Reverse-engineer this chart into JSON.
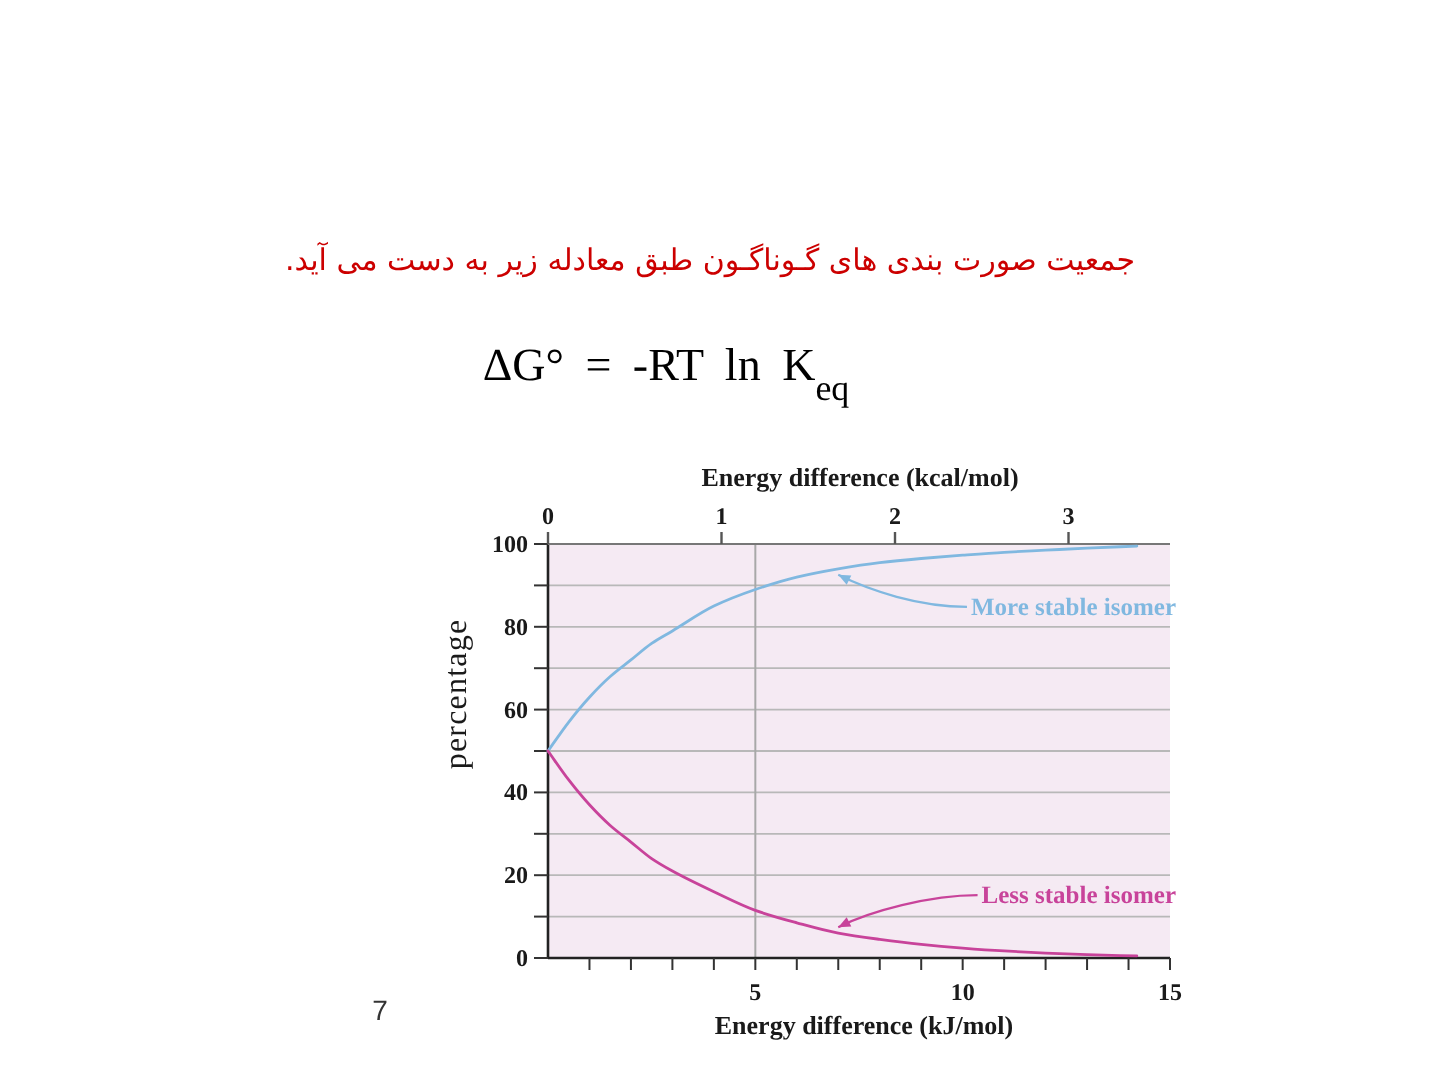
{
  "chart_data": {
    "type": "line",
    "title": "جمعیت صورت بندی های گـوناگـون طبق معادله زیر به دست می آید.",
    "subtitle": "ΔG° = -RT ln K$_{eq}$",
    "xlabel": "Energy difference (kJ/mol)",
    "x2label": "Energy difference (kcal/mol)",
    "ylabel": "percentage",
    "annotations": [
      "7"
    ],
    "x": [
      0,
      0.5,
      1,
      1.5,
      2,
      2.5,
      3,
      4,
      5,
      6,
      7,
      8,
      9,
      10,
      11,
      12,
      13,
      14.2
    ],
    "series": [
      {
        "name": "More stable isomer",
        "color": "#80b8e0",
        "values": [
          50,
          57,
          63,
          68,
          72,
          76,
          79,
          85,
          89,
          92,
          94,
          95.5,
          96.5,
          97.3,
          98,
          98.5,
          99,
          99.5
        ]
      },
      {
        "name": "Less stable isomer",
        "color": "#c8439a",
        "values": [
          50,
          43,
          37,
          32,
          28,
          24,
          21,
          16,
          11.5,
          8.5,
          6,
          4.5,
          3.3,
          2.4,
          1.7,
          1.2,
          0.8,
          0.5
        ]
      }
    ],
    "xlim": [
      0,
      15
    ],
    "xticks": [
      {
        "value": 1,
        "label": null
      },
      {
        "value": 2,
        "label": null
      },
      {
        "value": 3,
        "label": null
      },
      {
        "value": 4,
        "label": null
      },
      5,
      {
        "value": 6,
        "label": null
      },
      {
        "value": 7,
        "label": null
      },
      {
        "value": 8,
        "label": null
      },
      {
        "value": 9,
        "label": null
      },
      10,
      {
        "value": 11,
        "label": null
      },
      {
        "value": 12,
        "label": null
      },
      {
        "value": 13,
        "label": null
      },
      {
        "value": 14,
        "label": null
      },
      15
    ],
    "x2lim": [
      0,
      3.585
    ],
    "x2ticks": [
      0,
      1,
      2,
      3
    ],
    "ylim": [
      0,
      100
    ],
    "yticks": [
      0,
      {
        "value": 10,
        "label": null
      },
      20,
      {
        "value": 30,
        "label": null
      },
      40,
      {
        "value": 50,
        "label": null
      },
      60,
      {
        "value": 70,
        "label": null
      },
      80,
      {
        "value": 90,
        "label": null
      },
      100
    ],
    "grid": "y",
    "ref_lines": [
      {
        "axis": "x",
        "value": 5,
        "color": "#a8a8a8"
      }
    ],
    "marker": "none"
  }
}
